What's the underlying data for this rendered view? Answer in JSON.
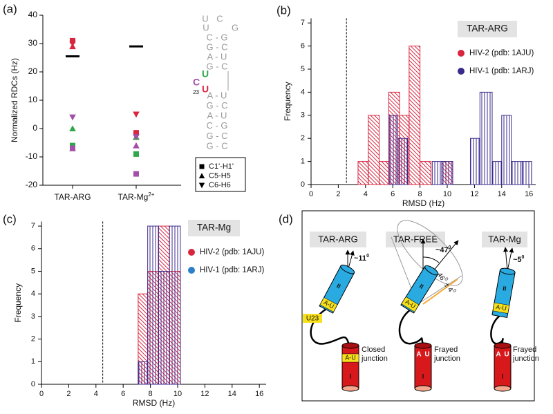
{
  "panel_labels": [
    "(a)",
    "(b)",
    "(c)",
    "(d)"
  ],
  "chart_data": [
    {
      "type": "scatter",
      "y_label": "Normalized RDCs (Hz)",
      "categories": [
        [
          "TAR-ARG"
        ],
        [
          "TAR-Mg",
          "2+"
        ]
      ],
      "point_colors": [
        "#d9263f",
        "#2ea84a",
        "#a34fa8"
      ],
      "series": [
        {
          "name": "C1'-H1'",
          "marker": "square",
          "values": [
            [
              31,
              -6,
              -7
            ],
            [
              -1.5,
              -9,
              -16
            ]
          ]
        },
        {
          "name": "C5-H5",
          "marker": "triangle-up",
          "values": [
            [
              29,
              0,
              -7
            ],
            [
              -3,
              -3,
              -6
            ]
          ]
        },
        {
          "name": "C6-H6",
          "marker": "triangle-down",
          "values": [
            [
              30,
              null,
              4
            ],
            [
              5,
              null,
              -3
            ]
          ]
        }
      ],
      "averages": [
        25.5,
        29
      ],
      "average_color": "#000000",
      "ylim": [
        -20,
        40
      ],
      "yticks": [
        -20,
        -10,
        0,
        10,
        20,
        30,
        40
      ],
      "rna": {
        "loop": [
          "U",
          "C",
          "U",
          "G"
        ],
        "stem_upper": [
          "C - G",
          "G - C",
          "A - U",
          "G - C"
        ],
        "bulge": [
          "U",
          "C",
          "U"
        ],
        "bulge_colors": [
          "#2ea84a",
          "#a34fa8",
          "#d9263f"
        ],
        "bulge_index": "23",
        "stem_lower": [
          "A - U",
          "G - C",
          "A - U",
          "C - G",
          "G - C",
          "G - C"
        ]
      }
    },
    {
      "type": "histogram",
      "title": "TAR-ARG",
      "x_label": "RMSD (Hz)",
      "y_label": "Frequency",
      "threshold": 2.6,
      "series": [
        {
          "name": "HIV-2 (pdb: 1AJU)",
          "color": "#d9263f",
          "legend_color": "#d9263f",
          "hatch": "diagonal",
          "bins": [
            3.45,
            4.2,
            5.0,
            5.7,
            6.5,
            7.2,
            8.0,
            8.8,
            9.6,
            10.4
          ],
          "counts": [
            1,
            3,
            1,
            4,
            3,
            6,
            1,
            0,
            1
          ]
        },
        {
          "name": "HIV-1 (pdb: 1ARJ)",
          "color": "#3b2a8c",
          "legend_color": "#3b2a8c",
          "hatch": "vertical",
          "bins": [
            5.75,
            6.35,
            7.1,
            8.9,
            9.6,
            10.4,
            11.7,
            12.4,
            13.3,
            14.0,
            14.7,
            15.5,
            16.2
          ],
          "counts": [
            3,
            2,
            0,
            1,
            1,
            0,
            2,
            4,
            1,
            3,
            1,
            1
          ]
        }
      ],
      "xlim": [
        0,
        16.5
      ],
      "xticks": [
        0,
        2,
        4,
        6,
        8,
        10,
        12,
        14,
        16
      ],
      "ylim": [
        0,
        7.2
      ],
      "yticks": [
        0,
        1,
        2,
        3,
        4,
        5,
        6,
        7
      ]
    },
    {
      "type": "histogram",
      "title": "TAR-Mg",
      "x_label": "RMSD (Hz)",
      "y_label": "Frequency",
      "threshold": 4.5,
      "series": [
        {
          "name": "HIV-2 (pdb: 1AJU)",
          "color": "#d9263f",
          "legend_color": "#d9263f",
          "hatch": "diagonal",
          "bins": [
            7.1,
            7.8,
            8.6,
            9.4,
            10.2
          ],
          "counts": [
            4,
            5,
            7,
            5
          ]
        },
        {
          "name": "HIV-1 (pdb: 1ARJ)",
          "color": "#3b2a8c",
          "legend_color": "#2a7fc8",
          "hatch": "vertical",
          "bins": [
            7.1,
            7.8,
            8.6,
            9.4,
            10.2
          ],
          "counts": [
            1,
            7,
            5,
            7
          ]
        }
      ],
      "xlim": [
        0,
        16.5
      ],
      "xticks": [
        0,
        2,
        4,
        6,
        8,
        10,
        12,
        14,
        16
      ],
      "ylim": [
        0,
        7.2
      ],
      "yticks": [
        0,
        1,
        2,
        3,
        4,
        5,
        6,
        7
      ]
    }
  ],
  "diagram": {
    "columns": [
      {
        "title": "TAR-ARG",
        "angle": [
          "~11",
          "0"
        ],
        "helix_top": "II",
        "pair_top": "A-U",
        "bulge": "U23",
        "pair_bottom": [
          "A-U"
        ],
        "helix_bottom": "I",
        "junction": [
          "Closed",
          "junction"
        ]
      },
      {
        "title": "TAR-FREE",
        "angle": [
          "~47",
          "0"
        ],
        "helix_top": "II",
        "pair_top": "A-U",
        "cone": [
          "46",
          "0",
          " ± 4",
          "0"
        ],
        "pair_bottom": [
          "A",
          "U"
        ],
        "helix_bottom": "I",
        "junction": [
          "Frayed",
          "junction"
        ]
      },
      {
        "title": "TAR-Mg",
        "angle": [
          "~5",
          "0"
        ],
        "helix_top": "II",
        "pair_top": "A-U",
        "pair_bottom": [
          "A",
          "U"
        ],
        "helix_bottom": "I",
        "junction": [
          "Frayed",
          "junction"
        ]
      }
    ]
  }
}
